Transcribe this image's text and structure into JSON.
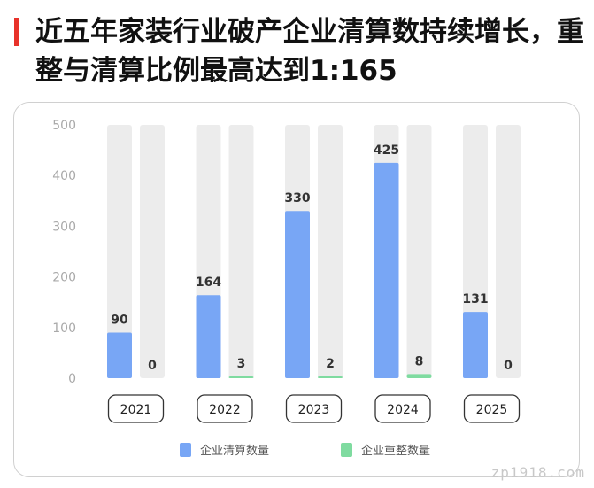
{
  "title": "近五年家装行业破产企业清算数持续增长，重整与清算比例最高达到1:165",
  "watermark": "zp1918.com",
  "chart_data": {
    "type": "bar",
    "categories": [
      "2021",
      "2022",
      "2023",
      "2024",
      "2025"
    ],
    "series": [
      {
        "name": "企业清算数量",
        "values": [
          90,
          164,
          330,
          425,
          131
        ],
        "color": "#78a6f5"
      },
      {
        "name": "企业重整数量",
        "values": [
          0,
          3,
          2,
          8,
          0
        ],
        "color": "#7fdba0"
      }
    ],
    "yticks": [
      0,
      100,
      200,
      300,
      400,
      500
    ],
    "ylim": [
      0,
      500
    ],
    "track_color": "#ececec",
    "grid": false,
    "legend_position": "bottom"
  }
}
